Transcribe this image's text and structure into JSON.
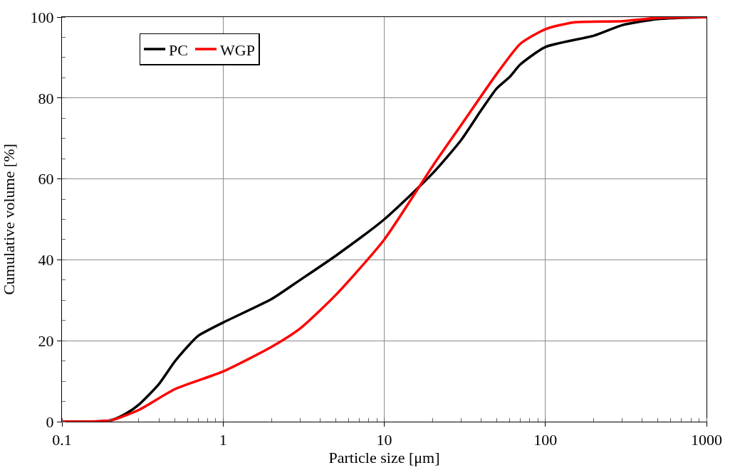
{
  "chart_data": {
    "type": "line",
    "xlabel": "Particle size [μm]",
    "ylabel": "Cumulative volume [%]",
    "log": "x",
    "xlim": [
      0.1,
      1000
    ],
    "xticks": [
      0.1,
      1,
      10,
      100,
      1000
    ],
    "ylim": [
      0,
      100
    ],
    "yticks": [
      0,
      20,
      40,
      60,
      80,
      100
    ],
    "grid": true,
    "legend": "top left",
    "marker": "none",
    "line_style": "solid",
    "series": [
      {
        "name": "PC",
        "color": "#000000",
        "x": [
          0.1,
          0.2,
          0.25,
          0.3,
          0.4,
          0.5,
          0.6,
          0.7,
          1,
          2,
          3,
          5,
          10,
          20,
          30,
          40,
          50,
          60,
          70,
          100,
          200,
          300,
          500,
          1000
        ],
        "values": [
          0,
          0.3,
          2,
          4.2,
          9.3,
          14.8,
          18.5,
          21.2,
          24.5,
          30.3,
          35,
          41,
          50,
          61.4,
          69.6,
          77,
          82.4,
          85.2,
          88.3,
          92.6,
          95.4,
          98,
          99.5,
          100
        ]
      },
      {
        "name": "WGP",
        "color": "#ff0000",
        "x": [
          0.1,
          0.2,
          0.3,
          0.5,
          1,
          2,
          3,
          5,
          10,
          20,
          30,
          50,
          70,
          100,
          150,
          300,
          500,
          1000
        ],
        "values": [
          0,
          0.3,
          2.9,
          8,
          12.4,
          18.5,
          23,
          31.3,
          45,
          63.2,
          73.3,
          86,
          93.4,
          97,
          98.7,
          99,
          99.8,
          100
        ]
      }
    ]
  }
}
